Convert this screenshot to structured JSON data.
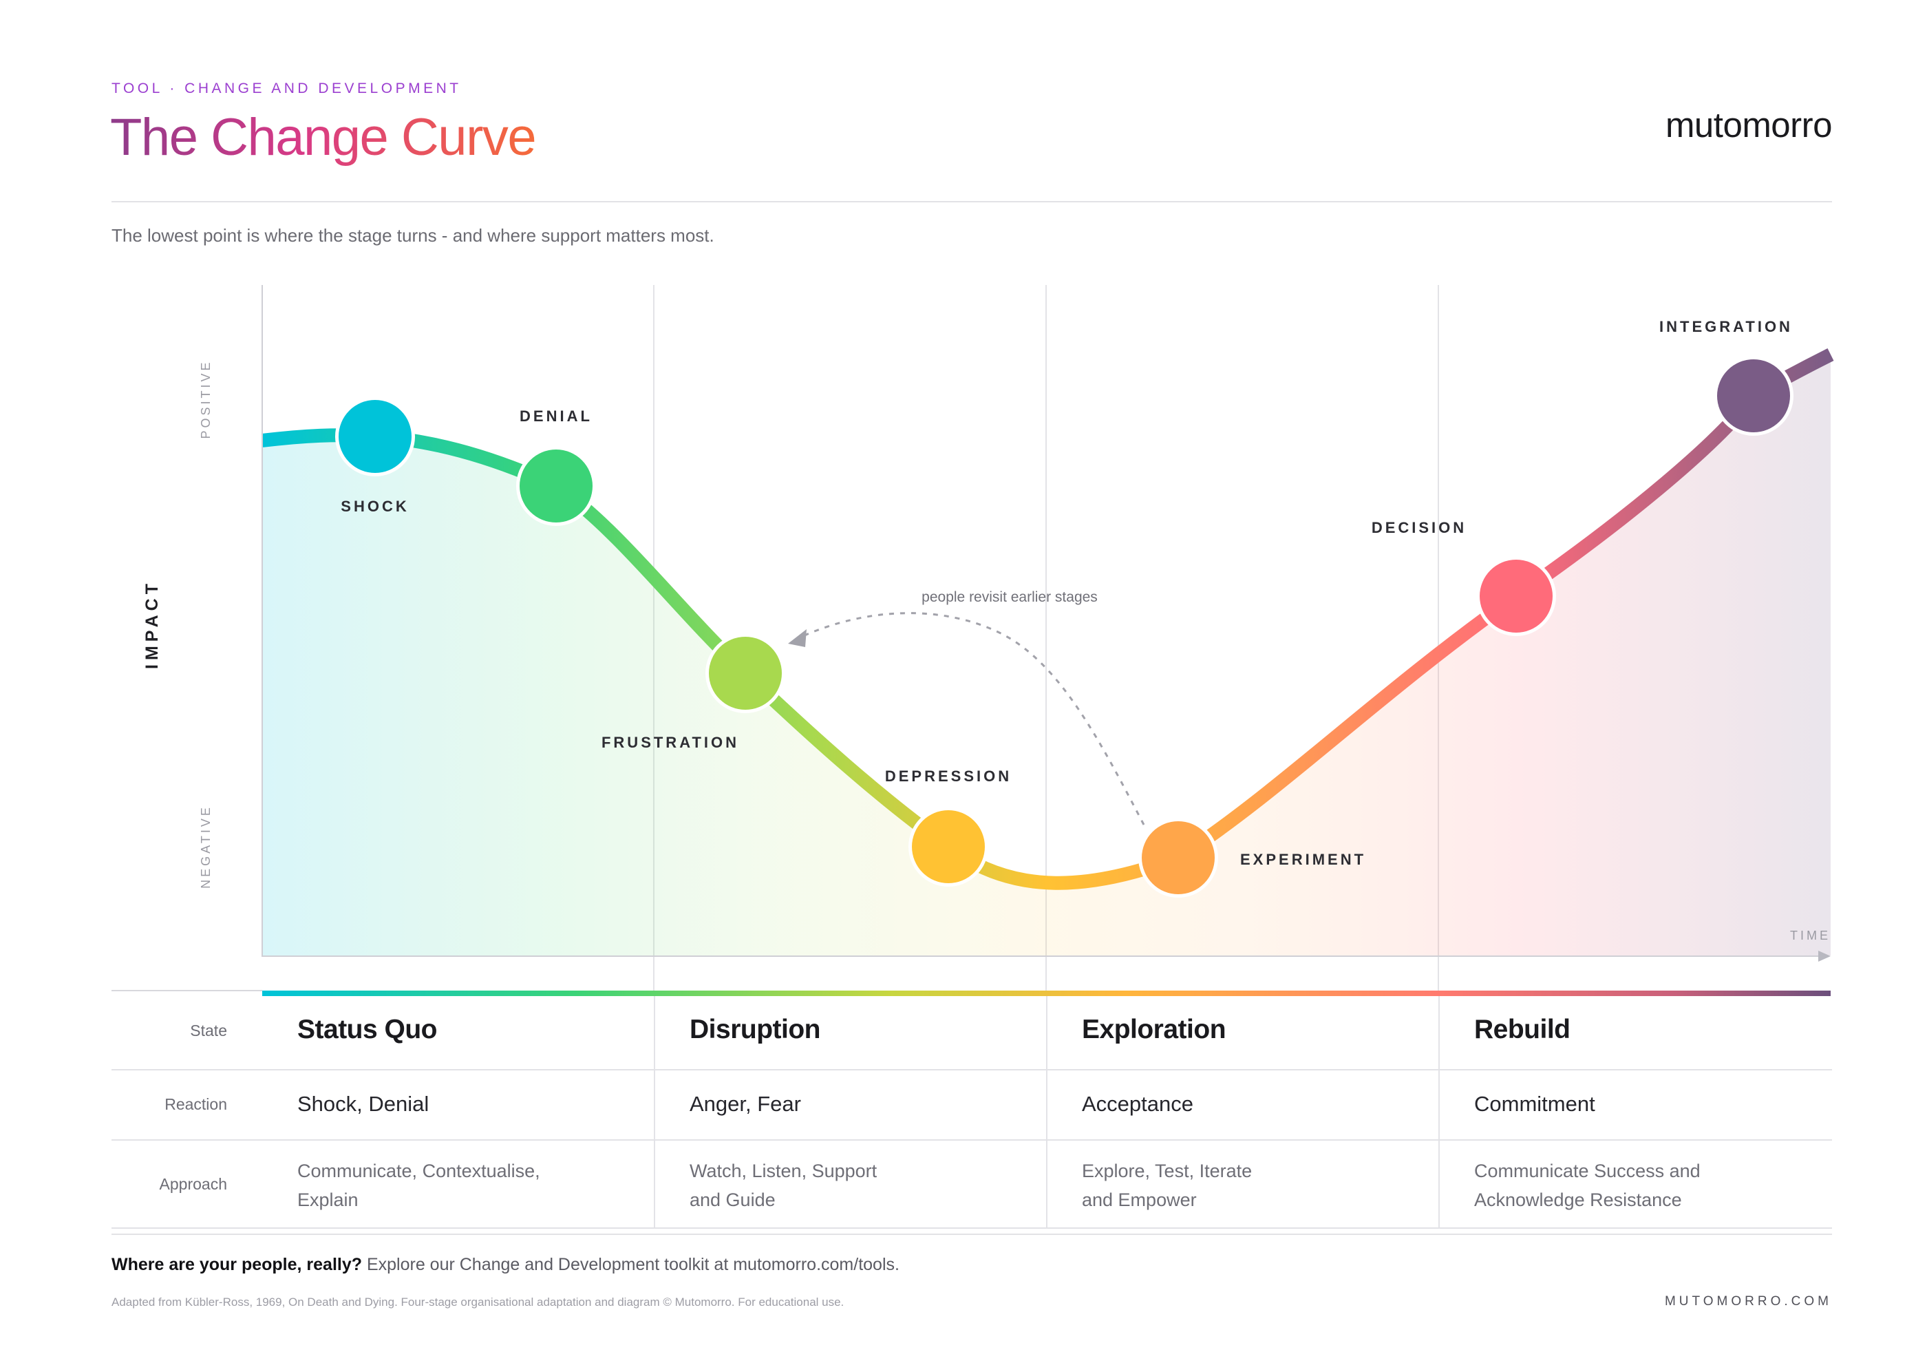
{
  "header": {
    "eyebrow": "TOOL · CHANGE AND DEVELOPMENT",
    "title": "The Change Curve",
    "brand": "mutomorro",
    "subtitle": "The lowest point is where the stage turns - and where support matters most."
  },
  "chart": {
    "y_axis_label": "IMPACT",
    "y_high_label": "POSITIVE",
    "y_low_label": "NEGATIVE",
    "x_axis_label": "TIME",
    "annotation": "people revisit earlier stages",
    "stages": [
      {
        "label": "SHOCK",
        "color": "#00c3d9"
      },
      {
        "label": "DENIAL",
        "color": "#3bd377"
      },
      {
        "label": "FRUSTRATION",
        "color": "#a8d94e"
      },
      {
        "label": "DEPRESSION",
        "color": "#ffc233"
      },
      {
        "label": "EXPERIMENT",
        "color": "#ffa64a"
      },
      {
        "label": "DECISION",
        "color": "#ff6b7a"
      },
      {
        "label": "INTEGRATION",
        "color": "#7a5c86"
      }
    ]
  },
  "table": {
    "row_labels": {
      "state": "State",
      "reaction": "Reaction",
      "approach": "Approach"
    },
    "columns": [
      {
        "state": "Status Quo",
        "reaction": "Shock, Denial",
        "approach_1": "Communicate, Contextualise,",
        "approach_2": "Explain"
      },
      {
        "state": "Disruption",
        "reaction": "Anger, Fear",
        "approach_1": "Watch, Listen, Support",
        "approach_2": "and Guide"
      },
      {
        "state": "Exploration",
        "reaction": "Acceptance",
        "approach_1": "Explore, Test, Iterate",
        "approach_2": "and Empower"
      },
      {
        "state": "Rebuild",
        "reaction": "Commitment",
        "approach_1": "Communicate Success and",
        "approach_2": "Acknowledge Resistance"
      }
    ]
  },
  "footer": {
    "cta_bold": "Where are your people, really?",
    "cta_text": " Explore our Change and Development toolkit at mutomorro.com/tools.",
    "credit": "Adapted from Kübler-Ross, 1969, On Death and Dying. Four-stage organisational adaptation and diagram © Mutomorro. For educational use.",
    "site": "MUTOMORRO.COM"
  }
}
